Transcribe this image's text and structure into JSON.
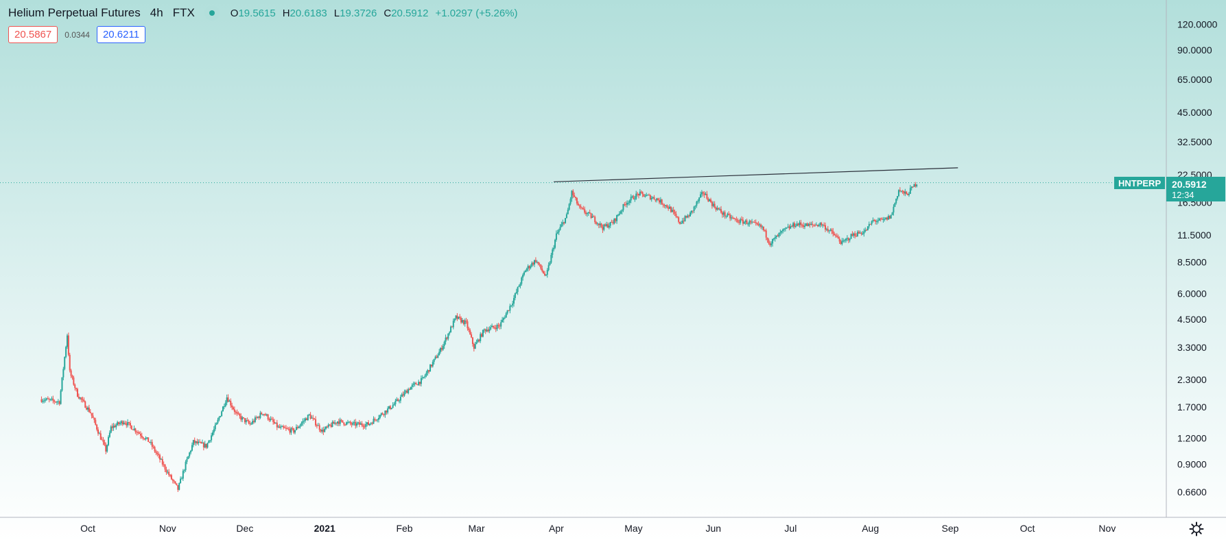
{
  "header": {
    "symbol_name": "Helium Perpetual Futures",
    "timeframe": "4h",
    "exchange": "FTX",
    "ohlc": {
      "o_label": "O",
      "o": "19.5615",
      "h_label": "H",
      "h": "20.6183",
      "l_label": "L",
      "l": "19.3726",
      "c_label": "C",
      "c": "20.5912",
      "change": "+1.0297 (+5.26%)"
    },
    "bid": "20.5867",
    "spread": "0.0344",
    "ask": "20.6211"
  },
  "price_label": {
    "symbol": "HNTPERP",
    "price": "20.5912",
    "countdown": "12:34"
  },
  "colors": {
    "up": "#26a69a",
    "down": "#ef5350",
    "axis_text": "#131722",
    "trendline": "#2a2e39"
  },
  "chart_data": {
    "type": "candlestick",
    "y_scale": "log",
    "ylim": [
      0.55,
      160
    ],
    "y_ticks": [
      "120.0000",
      "90.0000",
      "65.0000",
      "45.0000",
      "32.5000",
      "22.5000",
      "16.5000",
      "11.5000",
      "8.5000",
      "6.0000",
      "4.5000",
      "3.3000",
      "2.3000",
      "1.7000",
      "1.2000",
      "0.9000",
      "0.6600"
    ],
    "x_ticks": [
      "Oct",
      "Nov",
      "Dec",
      "2021",
      "Feb",
      "Mar",
      "Apr",
      "May",
      "Jun",
      "Jul",
      "Aug",
      "Sep",
      "Oct",
      "Nov"
    ],
    "path_points": [
      [
        "2020-09-13",
        1.85
      ],
      [
        "2020-09-20",
        1.8
      ],
      [
        "2020-09-23",
        3.8
      ],
      [
        "2020-09-24",
        2.5
      ],
      [
        "2020-09-27",
        1.95
      ],
      [
        "2020-10-02",
        1.6
      ],
      [
        "2020-10-08",
        1.05
      ],
      [
        "2020-10-10",
        1.35
      ],
      [
        "2020-10-15",
        1.45
      ],
      [
        "2020-10-20",
        1.3
      ],
      [
        "2020-10-25",
        1.15
      ],
      [
        "2020-10-29",
        0.95
      ],
      [
        "2020-11-02",
        0.78
      ],
      [
        "2020-11-05",
        0.68
      ],
      [
        "2020-11-08",
        0.9
      ],
      [
        "2020-11-11",
        1.15
      ],
      [
        "2020-11-16",
        1.1
      ],
      [
        "2020-11-20",
        1.4
      ],
      [
        "2020-11-24",
        1.9
      ],
      [
        "2020-11-28",
        1.55
      ],
      [
        "2020-12-03",
        1.4
      ],
      [
        "2020-12-08",
        1.6
      ],
      [
        "2020-12-14",
        1.35
      ],
      [
        "2020-12-20",
        1.3
      ],
      [
        "2020-12-26",
        1.55
      ],
      [
        "2020-12-31",
        1.3
      ],
      [
        "2021-01-06",
        1.45
      ],
      [
        "2021-01-12",
        1.4
      ],
      [
        "2021-01-18",
        1.4
      ],
      [
        "2021-01-24",
        1.6
      ],
      [
        "2021-01-28",
        1.75
      ],
      [
        "2021-02-03",
        2.1
      ],
      [
        "2021-02-08",
        2.3
      ],
      [
        "2021-02-15",
        3.2
      ],
      [
        "2021-02-21",
        4.6
      ],
      [
        "2021-02-25",
        4.3
      ],
      [
        "2021-02-28",
        3.3
      ],
      [
        "2021-03-04",
        4.0
      ],
      [
        "2021-03-10",
        4.2
      ],
      [
        "2021-03-15",
        5.5
      ],
      [
        "2021-03-20",
        7.8
      ],
      [
        "2021-03-24",
        8.7
      ],
      [
        "2021-03-28",
        7.2
      ],
      [
        "2021-04-01",
        11.5
      ],
      [
        "2021-04-05",
        14.2
      ],
      [
        "2021-04-07",
        18.5
      ],
      [
        "2021-04-10",
        15.5
      ],
      [
        "2021-04-15",
        14.0
      ],
      [
        "2021-04-19",
        12.5
      ],
      [
        "2021-04-23",
        13.2
      ],
      [
        "2021-04-28",
        16.5
      ],
      [
        "2021-05-03",
        18.2
      ],
      [
        "2021-05-10",
        17.2
      ],
      [
        "2021-05-15",
        15.5
      ],
      [
        "2021-05-19",
        13.2
      ],
      [
        "2021-05-23",
        14.5
      ],
      [
        "2021-05-28",
        18.5
      ],
      [
        "2021-06-01",
        16.0
      ],
      [
        "2021-06-05",
        14.5
      ],
      [
        "2021-06-10",
        13.5
      ],
      [
        "2021-06-15",
        13.2
      ],
      [
        "2021-06-20",
        12.5
      ],
      [
        "2021-06-23",
        10.5
      ],
      [
        "2021-06-28",
        12.0
      ],
      [
        "2021-07-03",
        13.0
      ],
      [
        "2021-07-08",
        12.8
      ],
      [
        "2021-07-13",
        13.0
      ],
      [
        "2021-07-18",
        11.5
      ],
      [
        "2021-07-21",
        10.5
      ],
      [
        "2021-07-25",
        11.5
      ],
      [
        "2021-07-30",
        12.0
      ],
      [
        "2021-08-02",
        13.5
      ],
      [
        "2021-08-06",
        13.5
      ],
      [
        "2021-08-09",
        14.2
      ],
      [
        "2021-08-12",
        19.0
      ],
      [
        "2021-08-15",
        18.0
      ],
      [
        "2021-08-19",
        20.59
      ]
    ],
    "trendline": [
      [
        "2021-03-31",
        20.8
      ],
      [
        "2021-09-04",
        24.3
      ]
    ],
    "last_price": 20.5912
  }
}
